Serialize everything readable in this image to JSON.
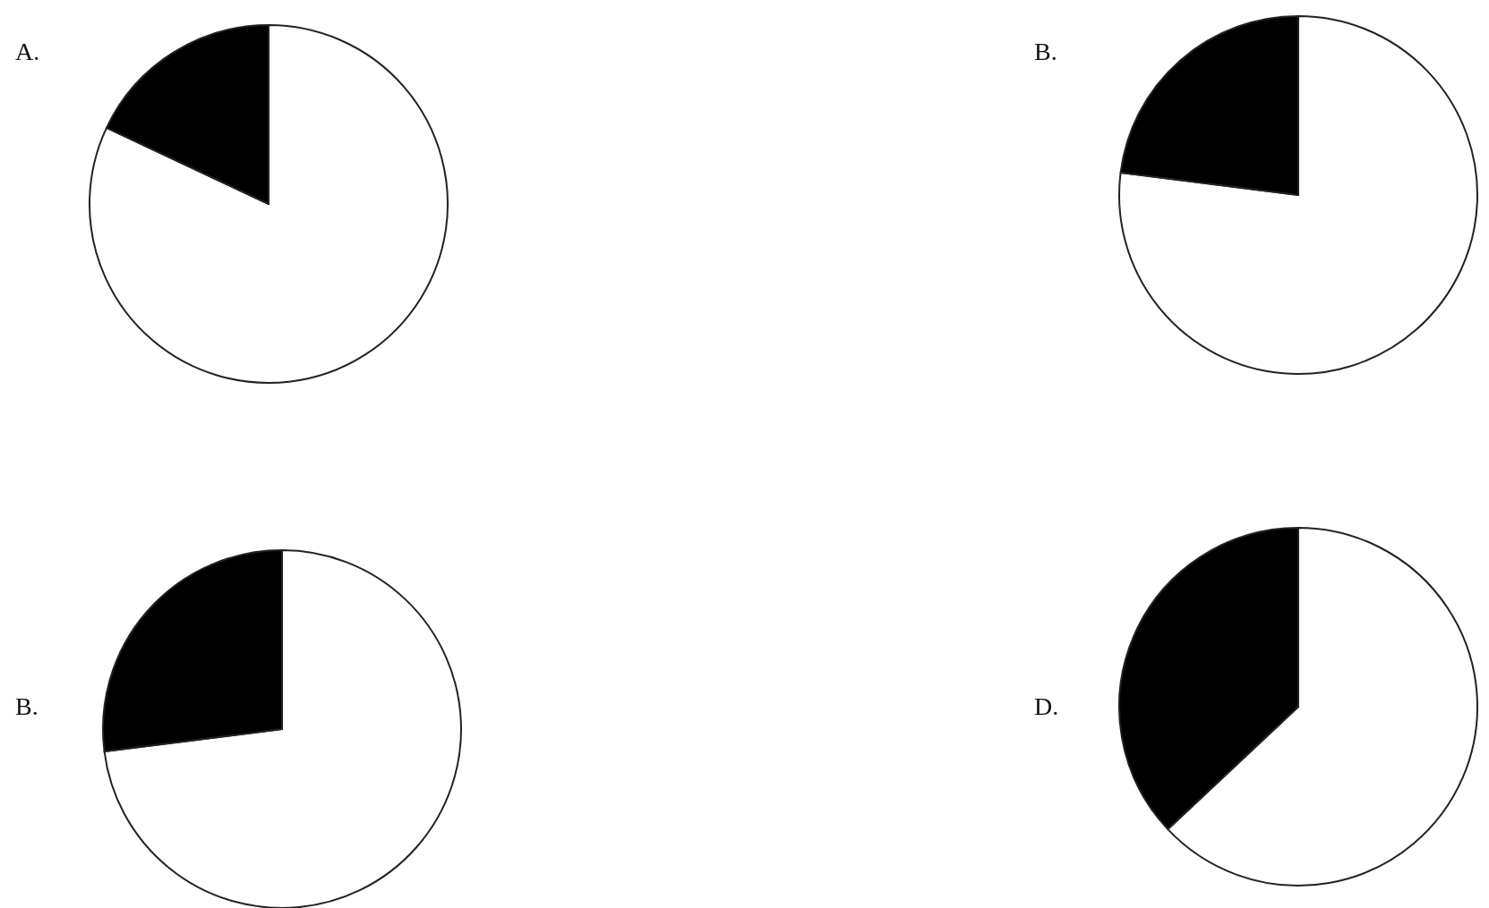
{
  "chart_data": [
    {
      "type": "pie",
      "title": "A.",
      "categories": [
        null,
        null
      ],
      "values": [
        82,
        18
      ],
      "colors": [
        "#ffffff",
        "#000000"
      ]
    },
    {
      "type": "pie",
      "title": "B.",
      "categories": [
        null,
        null
      ],
      "values": [
        77,
        23
      ],
      "colors": [
        "#ffffff",
        "#000000"
      ]
    },
    {
      "type": "pie",
      "title": "B.",
      "categories": [
        null,
        null
      ],
      "values": [
        73,
        27
      ],
      "colors": [
        "#ffffff",
        "#000000"
      ]
    },
    {
      "type": "pie",
      "title": "D.",
      "categories": [
        null,
        null
      ],
      "values": [
        63,
        37
      ],
      "colors": [
        "#ffffff",
        "#000000"
      ]
    }
  ]
}
